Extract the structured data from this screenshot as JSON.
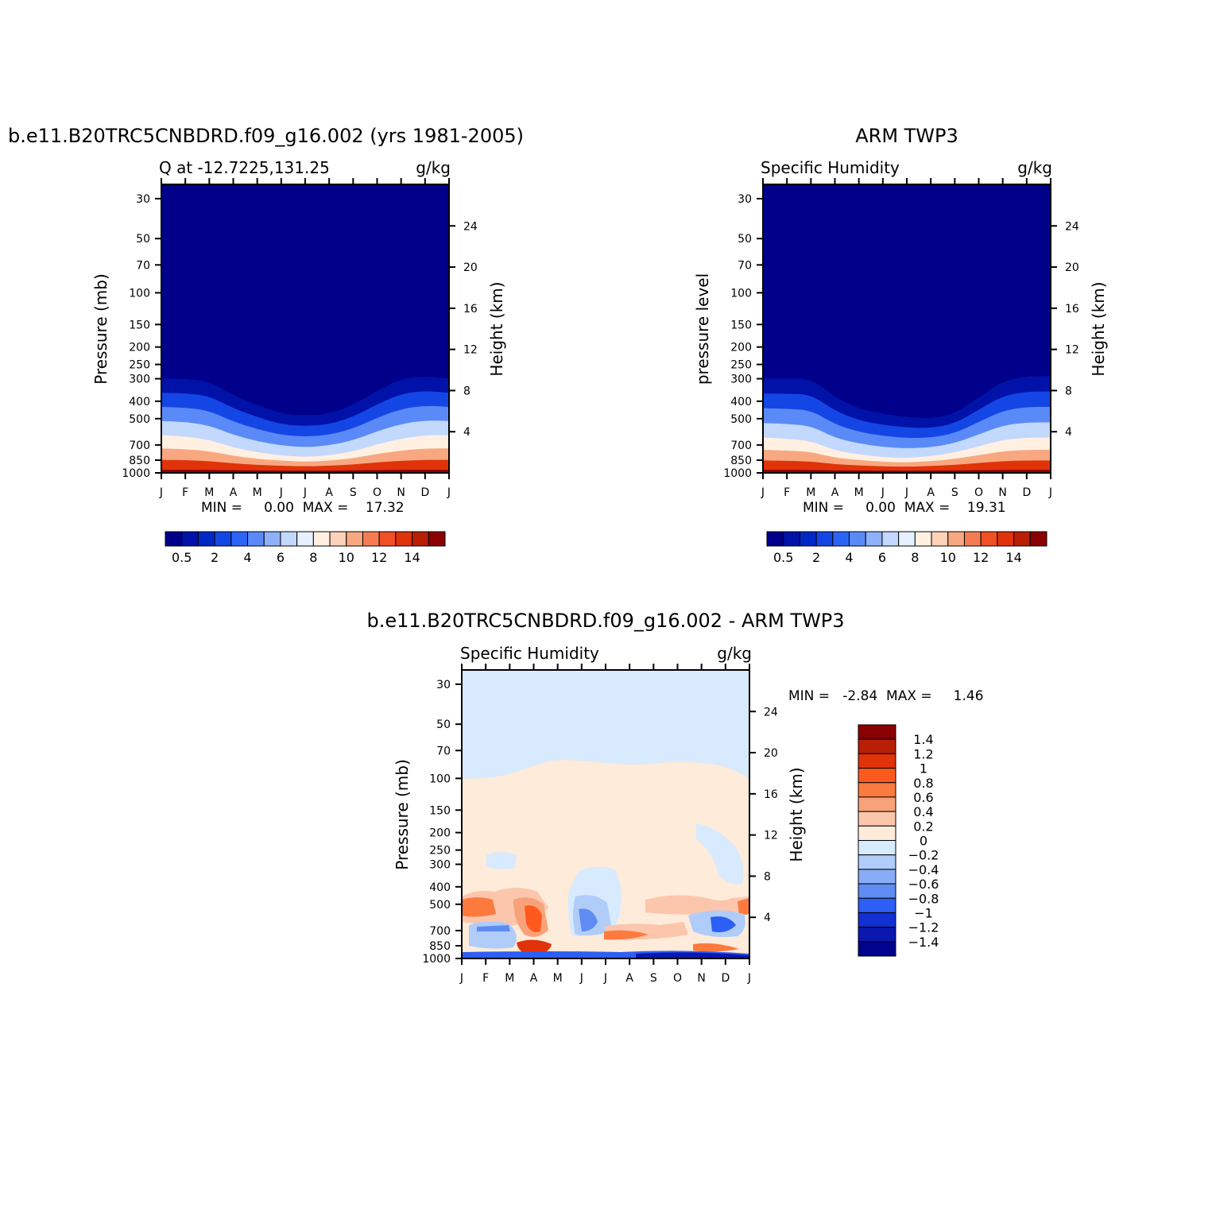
{
  "chart_data": [
    {
      "type": "contour",
      "title": "b.e11.B20TRC5CNBDRD.f09_g16.002 (yrs 1981-2005)",
      "subtitle_left": "Q at -12.7225,131.25",
      "subtitle_right": "g/kg",
      "ylabel": "Pressure (mb)",
      "ylabel_right": "Height (km)",
      "x_ticks": [
        "J",
        "F",
        "M",
        "A",
        "M",
        "J",
        "J",
        "A",
        "S",
        "O",
        "N",
        "D",
        "J"
      ],
      "y_ticks": [
        "30",
        "50",
        "70",
        "100",
        "150",
        "200",
        "250",
        "300",
        "400",
        "500",
        "700",
        "850",
        "1000"
      ],
      "y_ticks_right": [
        "24",
        "20",
        "16",
        "12",
        "8",
        "4"
      ],
      "stats": "MIN =     0.00  MAX =    17.32",
      "colorbar_labels": [
        "0.5",
        "2",
        "4",
        "6",
        "8",
        "10",
        "12",
        "14"
      ],
      "dry_boundary_hpa": [
        300,
        300,
        310,
        370,
        420,
        470,
        480,
        470,
        420,
        350,
        300,
        290,
        300
      ],
      "humid_boundary_hpa": [
        600,
        610,
        640,
        710,
        760,
        790,
        810,
        790,
        750,
        680,
        630,
        600,
        600
      ]
    },
    {
      "type": "contour",
      "title": "ARM TWP3",
      "subtitle_left": "Specific Humidity",
      "subtitle_right": "g/kg",
      "ylabel": "pressure level",
      "ylabel_right": "Height (km)",
      "x_ticks": [
        "J",
        "F",
        "M",
        "A",
        "M",
        "J",
        "J",
        "A",
        "S",
        "O",
        "N",
        "D",
        "J"
      ],
      "y_ticks": [
        "30",
        "50",
        "70",
        "100",
        "150",
        "200",
        "250",
        "300",
        "400",
        "500",
        "700",
        "850",
        "1000"
      ],
      "y_ticks_right": [
        "24",
        "20",
        "16",
        "12",
        "8",
        "4"
      ],
      "stats": "MIN =     0.00  MAX =    19.31",
      "colorbar_labels": [
        "0.5",
        "2",
        "4",
        "6",
        "8",
        "10",
        "12",
        "14"
      ],
      "dry_boundary_hpa": [
        300,
        300,
        300,
        380,
        440,
        470,
        490,
        500,
        470,
        380,
        310,
        290,
        290
      ],
      "humid_boundary_hpa": [
        620,
        630,
        650,
        740,
        780,
        810,
        820,
        800,
        760,
        700,
        640,
        620,
        620
      ]
    },
    {
      "type": "contour",
      "title": "b.e11.B20TRC5CNBDRD.f09_g16.002 - ARM TWP3",
      "subtitle_left": "Specific Humidity",
      "subtitle_right": "g/kg",
      "ylabel": "Pressure (mb)",
      "ylabel_right": "Height (km)",
      "x_ticks": [
        "J",
        "F",
        "M",
        "A",
        "M",
        "J",
        "J",
        "A",
        "S",
        "O",
        "N",
        "D",
        "J"
      ],
      "y_ticks": [
        "30",
        "50",
        "70",
        "100",
        "150",
        "200",
        "250",
        "300",
        "400",
        "500",
        "700",
        "850",
        "1000"
      ],
      "y_ticks_right": [
        "24",
        "20",
        "16",
        "12",
        "8",
        "4"
      ],
      "stats": "MIN =   -2.84  MAX =     1.46",
      "colorbar_labels": [
        "1.4",
        "1.2",
        "1",
        "0.8",
        "0.6",
        "0.4",
        "0.2",
        "0",
        "-0.2",
        "-0.4",
        "-0.6",
        "-0.8",
        "-1",
        "-1.2",
        "-1.4"
      ],
      "zero_boundary_hpa": [
        100,
        100,
        95,
        85,
        78,
        80,
        82,
        84,
        83,
        80,
        82,
        85,
        100
      ]
    }
  ],
  "colors": {
    "seq": [
      "#00008b",
      "#0012a8",
      "#0028c6",
      "#1446e6",
      "#2c64f5",
      "#5a8af7",
      "#8eb2fa",
      "#c2d8fd",
      "#e6f0ff",
      "#fff0e2",
      "#fcd2b8",
      "#f8a880",
      "#f57c52",
      "#f15024",
      "#e0330a",
      "#b81f04",
      "#8b0000"
    ],
    "div": [
      "#8b0000",
      "#b81f04",
      "#e0330a",
      "#ff5a1e",
      "#fd7a3e",
      "#f8a27a",
      "#fcc6ac",
      "#feebd9",
      "#d8eafd",
      "#b0ccf9",
      "#88acf6",
      "#5e8cf3",
      "#2d5ef5",
      "#1230d4",
      "#0a18b0",
      "#00038c"
    ]
  }
}
